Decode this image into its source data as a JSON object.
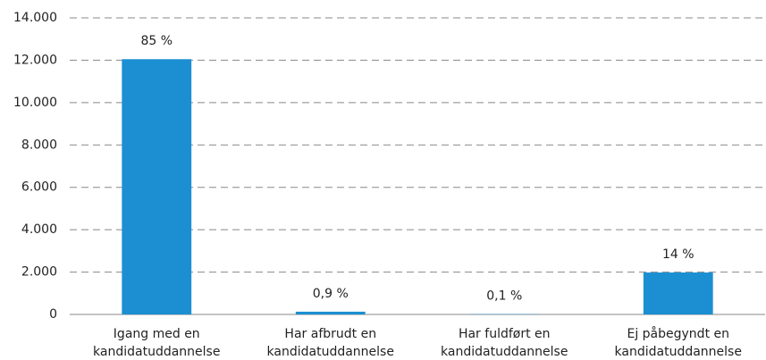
{
  "chart_data": {
    "type": "bar",
    "categories": [
      [
        "Igang med en",
        "kandidatuddannelse"
      ],
      [
        "Har afbrudt en",
        "kandidatuddannelse"
      ],
      [
        "Har fuldført en",
        "kandidatuddannelse"
      ],
      [
        "Ej påbegyndt en",
        "kandidatuddannelse"
      ]
    ],
    "values": [
      12050,
      130,
      15,
      1980
    ],
    "annotations": [
      "85 %",
      "0,9 %",
      "0,1 %",
      "14 %"
    ],
    "color": "#1b8fd2",
    "ylim": [
      0,
      14000
    ],
    "yticks": [
      0,
      {
        "value": 2000,
        "label": "2.000"
      },
      {
        "value": 4000,
        "label": "4.000"
      },
      {
        "value": 6000,
        "label": "6.000"
      },
      {
        "value": 8000,
        "label": "8.000"
      },
      {
        "value": 10000,
        "label": "10.000"
      },
      {
        "value": 12000,
        "label": "12.000"
      },
      {
        "value": 14000,
        "label": "14.000"
      }
    ],
    "grid": true
  }
}
